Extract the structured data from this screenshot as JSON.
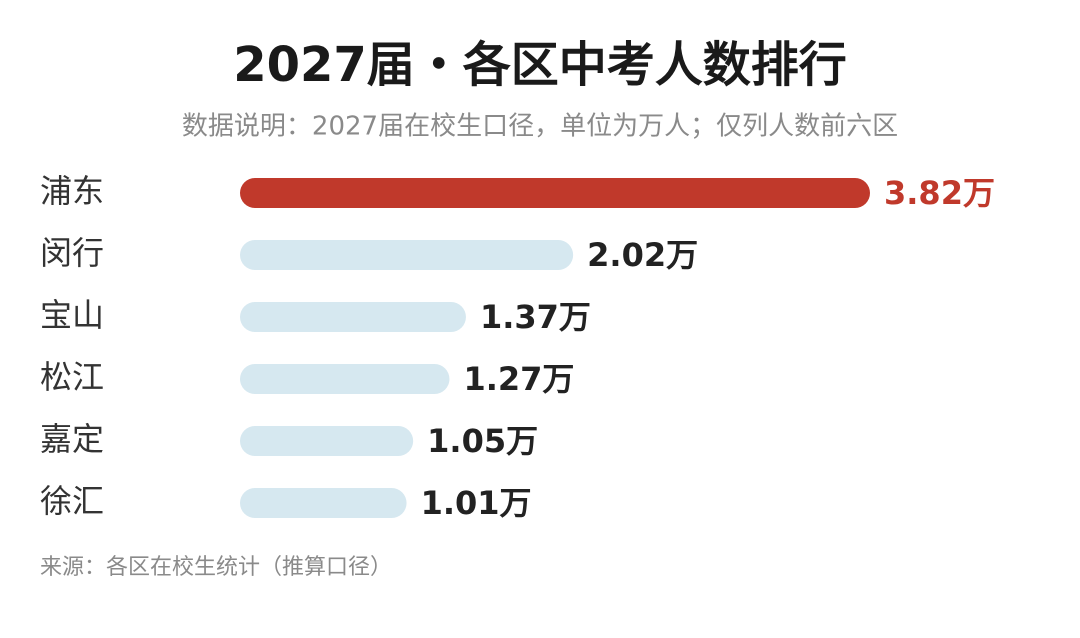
{
  "chart_data": {
    "type": "bar",
    "orientation": "horizontal",
    "title": "2027届・各区中考人数排行",
    "subtitle": "数据说明：2027届在校生口径，单位为万人；仅列人数前六区",
    "source": "来源：各区在校生统计（推算口径）",
    "categories": [
      "浦东",
      "闵行",
      "宝山",
      "松江",
      "嘉定",
      "徐汇"
    ],
    "values": [
      3.82,
      2.02,
      1.37,
      1.27,
      1.05,
      1.01
    ],
    "value_labels": [
      "3.82万",
      "2.02万",
      "1.37万",
      "1.27万",
      "1.05万",
      "1.01万"
    ],
    "colors": [
      "#c0392b",
      "#d6e8f0",
      "#d6e8f0",
      "#d6e8f0",
      "#d6e8f0",
      "#d6e8f0"
    ],
    "label_colors": [
      "#c0392b",
      "#222222",
      "#222222",
      "#222222",
      "#222222",
      "#222222"
    ]
  }
}
